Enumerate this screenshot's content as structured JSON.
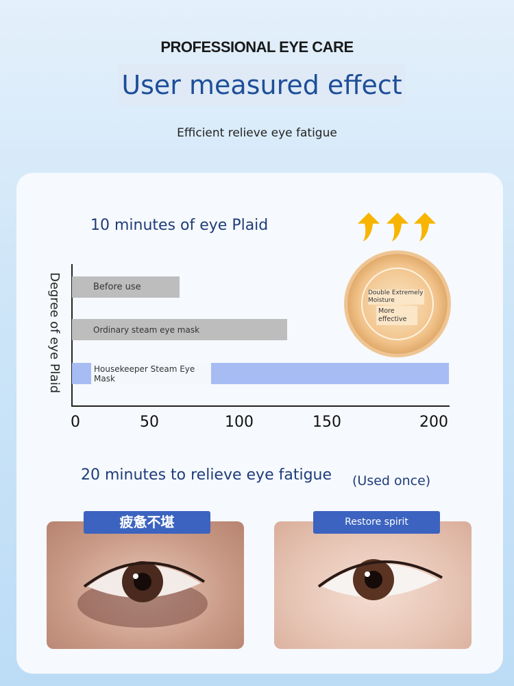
{
  "header": {
    "kicker": "PROFESSIONAL EYE CARE",
    "title": "User measured effect",
    "subtitle": "Efficient relieve eye fatigue"
  },
  "chart_data": {
    "type": "bar",
    "orientation": "horizontal",
    "title": "10 minutes of eye Plaid",
    "ylabel": "Degree of eye Plaid",
    "xlabel": "",
    "categories": [
      "Before use",
      "Ordinary steam eye mask",
      "Housekeeper Steam Eye Mask"
    ],
    "values": [
      60,
      120,
      210
    ],
    "xticks": [
      0,
      50,
      100,
      150,
      200
    ],
    "xlim": [
      0,
      210
    ],
    "grid": false,
    "colors": [
      "#bdbdbd",
      "#bdbdbd",
      "#a6bcf3"
    ]
  },
  "badge": {
    "line1": "Double Extremely Moisture",
    "line2": "More effective",
    "icon": "gold-medal"
  },
  "arrows": {
    "icon": "up-arrow",
    "color": "#f7b500"
  },
  "comparison": {
    "title": "20 minutes to relieve eye fatigue",
    "note": "(Used once)",
    "before_label": "疲惫不堪",
    "after_label": "Restore spirit"
  },
  "colors": {
    "accent": "#3c63bf",
    "title_blue": "#1e4e99"
  }
}
